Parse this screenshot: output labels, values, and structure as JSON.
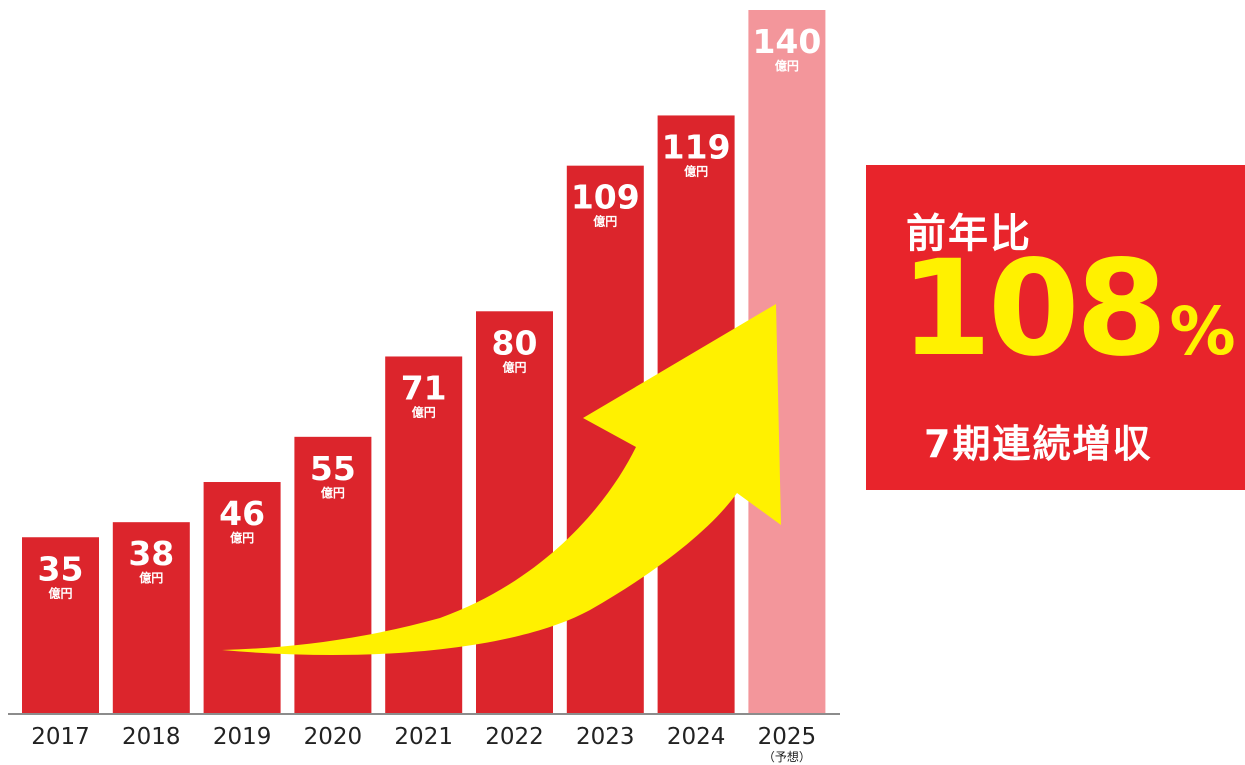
{
  "chart_data": {
    "type": "bar",
    "categories": [
      "2017",
      "2018",
      "2019",
      "2020",
      "2021",
      "2022",
      "2023",
      "2024",
      "2025"
    ],
    "values": [
      35,
      38,
      46,
      55,
      71,
      80,
      109,
      119,
      140
    ],
    "unit": "億円",
    "forecast_note": "（予想）",
    "forecast_index": 8,
    "colors": {
      "bar": "#dc252c",
      "forecast_bar": "#f3969b",
      "arrow": "#fff100",
      "axis": "#666666",
      "text": "#ffffff",
      "tick": "#222222"
    },
    "ylim": [
      0,
      140
    ]
  },
  "callout": {
    "label": "前年比",
    "percent_value": "108",
    "percent_sign": "%",
    "subtitle": "7期連続増収"
  }
}
